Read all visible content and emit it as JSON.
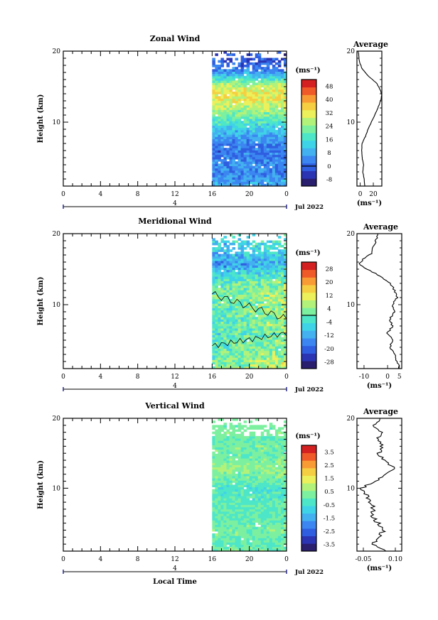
{
  "figure": {
    "time_axis_label": "Local Time",
    "date_label": "Jul 2022",
    "day_label": "4",
    "avg_xlabel": "(ms⁻¹)"
  },
  "colorbar_unit": "(ms⁻¹)",
  "colormap": [
    "#2a1e6e",
    "#2b34b2",
    "#2f5ee0",
    "#3b86f0",
    "#43b0ef",
    "#3fd3e8",
    "#4de6c8",
    "#7df0a0",
    "#b2f27a",
    "#ecf05a",
    "#f5cf41",
    "#f89b35",
    "#f05a28",
    "#d42020"
  ],
  "chart_data": [
    {
      "type": "heatmap",
      "title": "Zonal Wind",
      "ylabel": "Height (km)",
      "xlabel": "Local Time",
      "x_ticks": [
        "0",
        "4",
        "8",
        "12",
        "16",
        "20",
        "0"
      ],
      "y_ticks": [
        "10",
        "20"
      ],
      "xlim": [
        0,
        24
      ],
      "ylim": [
        1,
        20
      ],
      "data_start_hour": 16,
      "colorbar": {
        "ticks": [
          "48",
          "40",
          "32",
          "24",
          "16",
          "8",
          "0",
          "-8"
        ],
        "vmin": -12,
        "vmax": 52,
        "zero_line_value": 0
      },
      "profile_by_height": [
        {
          "h": 1.0,
          "v": 7
        },
        {
          "h": 2.0,
          "v": 6
        },
        {
          "h": 3.0,
          "v": 4
        },
        {
          "h": 4.0,
          "v": 5
        },
        {
          "h": 5.0,
          "v": 3
        },
        {
          "h": 6.0,
          "v": 2
        },
        {
          "h": 7.0,
          "v": 3
        },
        {
          "h": 8.0,
          "v": 8
        },
        {
          "h": 9.0,
          "v": 12
        },
        {
          "h": 10.0,
          "v": 17
        },
        {
          "h": 11.0,
          "v": 22
        },
        {
          "h": 12.0,
          "v": 27
        },
        {
          "h": 13.0,
          "v": 31
        },
        {
          "h": 13.8,
          "v": 33
        },
        {
          "h": 14.5,
          "v": 31
        },
        {
          "h": 15.5,
          "v": 25
        },
        {
          "h": 16.5,
          "v": 12
        },
        {
          "h": 17.5,
          "v": 3
        },
        {
          "h": 18.2,
          "v": 0
        },
        {
          "h": 19.0,
          "v": -2
        },
        {
          "h": 20.0,
          "v": -3
        }
      ],
      "average": {
        "title": "Average",
        "x_ticks": [
          "0",
          "20"
        ],
        "xlim": [
          -5,
          33
        ],
        "y_ticks": [
          "10",
          "20"
        ]
      }
    },
    {
      "type": "heatmap",
      "title": "Meridional Wind",
      "ylabel": "Height (km)",
      "xlabel": "Local Time",
      "x_ticks": [
        "0",
        "4",
        "8",
        "12",
        "16",
        "20",
        "0"
      ],
      "y_ticks": [
        "10",
        "20"
      ],
      "xlim": [
        0,
        24
      ],
      "ylim": [
        1,
        20
      ],
      "data_start_hour": 16,
      "colorbar": {
        "ticks": [
          "28",
          "20",
          "12",
          "4",
          "-4",
          "-12",
          "-20",
          "-28"
        ],
        "vmin": -32,
        "vmax": 32,
        "zero_line_value": 0
      },
      "profile_by_height": [
        {
          "h": 1.0,
          "v": 5
        },
        {
          "h": 2.0,
          "v": 4
        },
        {
          "h": 3.0,
          "v": 3
        },
        {
          "h": 4.0,
          "v": 1
        },
        {
          "h": 5.0,
          "v": 2
        },
        {
          "h": 6.0,
          "v": 0
        },
        {
          "h": 7.0,
          "v": 2
        },
        {
          "h": 8.0,
          "v": 1
        },
        {
          "h": 9.0,
          "v": 3
        },
        {
          "h": 10.0,
          "v": 2
        },
        {
          "h": 11.0,
          "v": 4
        },
        {
          "h": 12.0,
          "v": 3
        },
        {
          "h": 13.0,
          "v": 1
        },
        {
          "h": 14.0,
          "v": -3
        },
        {
          "h": 15.0,
          "v": -9
        },
        {
          "h": 15.8,
          "v": -12
        },
        {
          "h": 16.5,
          "v": -10
        },
        {
          "h": 17.2,
          "v": -7
        },
        {
          "h": 18.0,
          "v": -6
        },
        {
          "h": 19.0,
          "v": -5
        },
        {
          "h": 20.0,
          "v": -4
        }
      ],
      "average": {
        "title": "Average",
        "x_ticks": [
          "-10",
          "0",
          "5"
        ],
        "xlim": [
          -13,
          6
        ],
        "y_ticks": [
          "10",
          "20"
        ]
      }
    },
    {
      "type": "heatmap",
      "title": "Vertical Wind",
      "ylabel": "Height (km)",
      "xlabel": "Local Time",
      "x_ticks": [
        "0",
        "4",
        "8",
        "12",
        "16",
        "20",
        "0"
      ],
      "y_ticks": [
        "10",
        "20"
      ],
      "xlim": [
        0,
        24
      ],
      "ylim": [
        1,
        20
      ],
      "data_start_hour": 16,
      "colorbar": {
        "ticks": [
          "3.5",
          "2.5",
          "1.5",
          "0.5",
          "-0.5",
          "-1.5",
          "-2.5",
          "-3.5"
        ],
        "vmin": -4,
        "vmax": 4,
        "zero_line_value": null
      },
      "profile_by_height": [
        {
          "h": 1.0,
          "v": 0.05
        },
        {
          "h": 2.0,
          "v": 0.0
        },
        {
          "h": 3.0,
          "v": 0.02
        },
        {
          "h": 4.0,
          "v": 0.05
        },
        {
          "h": 5.0,
          "v": 0.02
        },
        {
          "h": 6.0,
          "v": -0.01
        },
        {
          "h": 7.0,
          "v": 0.0
        },
        {
          "h": 8.0,
          "v": -0.02
        },
        {
          "h": 9.0,
          "v": -0.03
        },
        {
          "h": 10.0,
          "v": -0.06
        },
        {
          "h": 11.0,
          "v": 0.01
        },
        {
          "h": 12.0,
          "v": 0.06
        },
        {
          "h": 13.0,
          "v": 0.09
        },
        {
          "h": 14.0,
          "v": 0.05
        },
        {
          "h": 15.0,
          "v": 0.02
        },
        {
          "h": 16.0,
          "v": 0.04
        },
        {
          "h": 17.0,
          "v": 0.01
        },
        {
          "h": 18.0,
          "v": 0.03
        },
        {
          "h": 19.0,
          "v": 0.0
        },
        {
          "h": 20.0,
          "v": 0.02
        }
      ],
      "average": {
        "title": "Average",
        "x_ticks": [
          "-0.05",
          "0.10"
        ],
        "xlim": [
          -0.08,
          0.13
        ],
        "y_ticks": [
          "10",
          "20"
        ]
      }
    }
  ]
}
